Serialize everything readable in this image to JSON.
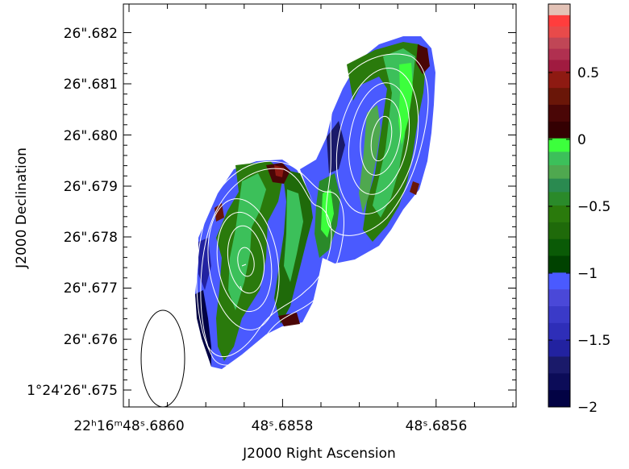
{
  "chart_data": {
    "type": "heatmap",
    "xlabel": "J2000 Right Ascension",
    "ylabel": "J2000 Declination",
    "x_ticks": [
      {
        "label": "22ʰ16ᵐ48ˢ.6860"
      },
      {
        "label": "48ˢ.6858"
      },
      {
        "label": "48ˢ.6856"
      }
    ],
    "y_ticks": [
      {
        "label": "1°24'26\".675"
      },
      {
        "label": "26\".676"
      },
      {
        "label": "26\".677"
      },
      {
        "label": "26\".678"
      },
      {
        "label": "26\".679"
      },
      {
        "label": "26\".680"
      },
      {
        "label": "26\".681"
      },
      {
        "label": "26\".682"
      }
    ],
    "colorbar": {
      "range": [
        -2,
        1
      ],
      "tick_labels": [
        "0.5",
        "0",
        "−0.5",
        "−1",
        "−1.5",
        "−2"
      ],
      "bands": [
        {
          "from": 0.5,
          "to": 1.0,
          "colors": [
            "#e3c2b6",
            "#ff3d3d",
            "#e84a4a",
            "#c04656",
            "#b03050",
            "#a01b40"
          ]
        },
        {
          "from": 0.0,
          "to": 0.5,
          "colors": [
            "#8e1a12",
            "#6a1608",
            "#4a0606",
            "#340002"
          ]
        },
        {
          "from": -0.5,
          "to": 0.0,
          "colors": [
            "#3cff3c",
            "#3cc05a",
            "#4fa84f",
            "#2a8a50",
            "#2a8a2a"
          ]
        },
        {
          "from": -1.0,
          "to": -0.5,
          "colors": [
            "#2a7a0c",
            "#1f6a0a",
            "#0a5a06",
            "#004200"
          ]
        },
        {
          "from": -1.5,
          "to": -1.0,
          "colors": [
            "#4a5aff",
            "#4a48d8",
            "#3a3ac8",
            "#2e2eb8"
          ]
        },
        {
          "from": -2.0,
          "to": -1.5,
          "colors": [
            "#2222a0",
            "#1a1a6a",
            "#0c0c58",
            "#020244"
          ]
        }
      ]
    },
    "contours": "white",
    "beam": "ellipse, lower-left"
  }
}
